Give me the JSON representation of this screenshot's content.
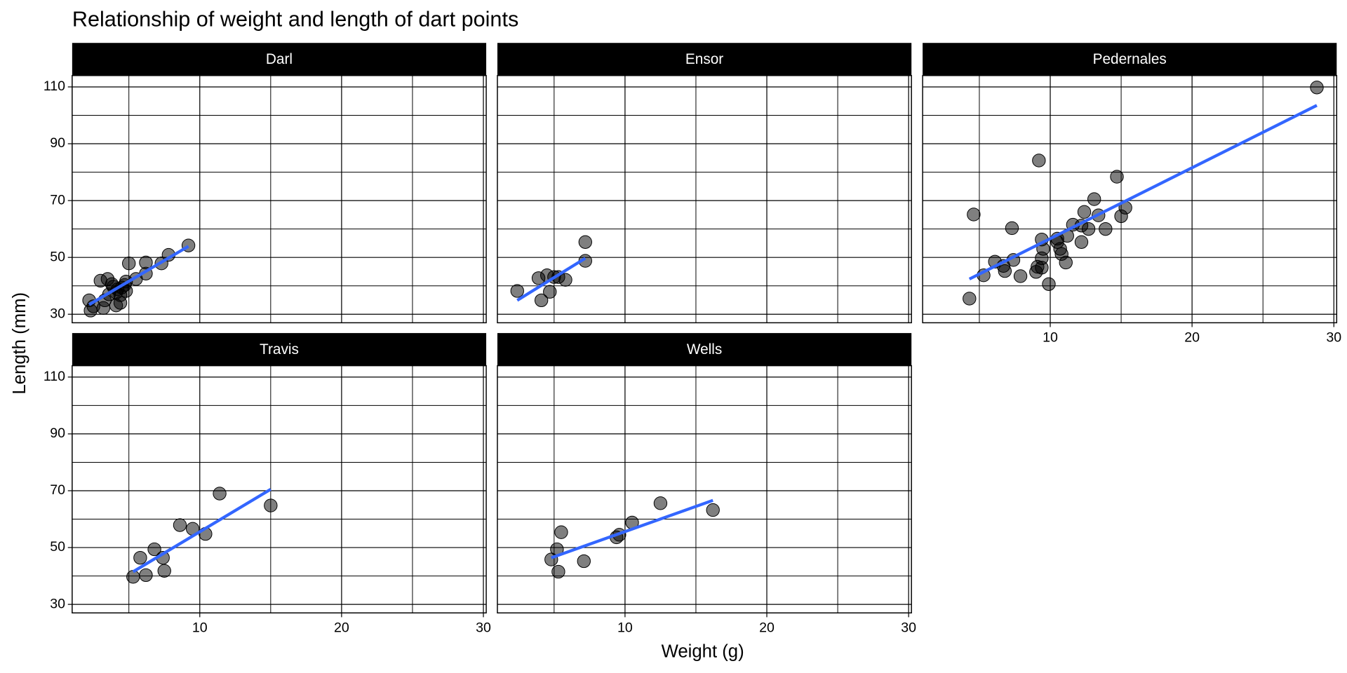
{
  "chart_data": {
    "type": "scatter",
    "title": "Relationship of weight and length of dart points",
    "x_label": "Weight (g)",
    "y_label": "Length (mm)",
    "xlim": [
      1,
      30.2
    ],
    "xticks": [
      10,
      20,
      30
    ],
    "x_minor_ticks": [
      5,
      15,
      25
    ],
    "ylim": [
      27,
      114
    ],
    "yticks": [
      30,
      50,
      70,
      90,
      110
    ],
    "y_minor_ticks": [
      40,
      60,
      80,
      100
    ],
    "grid": true,
    "point_color": "#000000",
    "point_opacity": 0.5,
    "trend_color": "#3366ff",
    "facets": [
      {
        "name": "Darl",
        "x": [
          2.2,
          2.3,
          2.5,
          3.0,
          3.2,
          3.3,
          3.5,
          3.6,
          3.8,
          3.9,
          4.1,
          4.2,
          4.4,
          4.5,
          4.7,
          4.8,
          4.1,
          4.4,
          4.8,
          5.0,
          5.5,
          6.2,
          6.2,
          7.3,
          7.8,
          9.2
        ],
        "y": [
          34.9,
          31.3,
          32.8,
          41.8,
          32.2,
          34.9,
          42.4,
          37.0,
          40.6,
          39.7,
          37.6,
          38.8,
          36.7,
          39.4,
          40.3,
          41.5,
          33.1,
          34.0,
          38.2,
          47.9,
          42.4,
          48.2,
          44.3,
          47.9,
          50.9,
          54.2
        ],
        "trend": {
          "x": [
            2.2,
            9.2
          ],
          "y": [
            33.4,
            53.9
          ]
        }
      },
      {
        "name": "Ensor",
        "x": [
          2.4,
          3.9,
          4.1,
          4.5,
          4.7,
          5.0,
          5.3,
          5.8,
          7.2,
          7.2
        ],
        "y": [
          38.2,
          42.7,
          34.9,
          43.7,
          37.9,
          43.1,
          43.1,
          42.1,
          55.4,
          48.8
        ],
        "trend": {
          "x": [
            2.4,
            7.2
          ],
          "y": [
            34.9,
            49.7
          ]
        }
      },
      {
        "name": "Pedernales",
        "x": [
          4.3,
          4.6,
          5.3,
          6.1,
          6.7,
          6.8,
          7.3,
          7.4,
          7.9,
          9.0,
          9.1,
          9.2,
          9.4,
          9.4,
          9.5,
          10.5,
          10.7,
          10.8,
          11.1,
          11.2,
          11.6,
          12.2,
          12.2,
          12.4,
          12.7,
          13.1,
          13.4,
          13.9,
          14.7,
          15.0,
          15.3,
          28.8,
          9.9,
          9.4,
          10.5
        ],
        "y": [
          35.5,
          65.1,
          43.7,
          48.5,
          47.0,
          45.2,
          60.3,
          49.1,
          43.4,
          44.9,
          46.7,
          84.1,
          56.3,
          49.7,
          53.0,
          55.4,
          53.0,
          51.2,
          48.2,
          57.6,
          61.5,
          55.4,
          61.2,
          66.0,
          60.0,
          70.5,
          64.8,
          60.0,
          78.4,
          64.5,
          67.5,
          109.8,
          40.6,
          46.4,
          56.6
        ],
        "trend": {
          "x": [
            4.3,
            28.8
          ],
          "y": [
            42.4,
            103.5
          ]
        }
      },
      {
        "name": "Travis",
        "x": [
          5.3,
          5.8,
          6.2,
          6.8,
          7.4,
          7.5,
          8.6,
          9.5,
          10.4,
          11.4,
          15.0
        ],
        "y": [
          39.7,
          46.4,
          40.3,
          49.4,
          46.4,
          41.8,
          57.9,
          56.6,
          54.8,
          69.0,
          64.8
        ],
        "trend": {
          "x": [
            5.3,
            15.0
          ],
          "y": [
            41.5,
            70.5
          ]
        }
      },
      {
        "name": "Wells",
        "x": [
          4.8,
          5.2,
          5.3,
          5.5,
          7.1,
          9.4,
          9.6,
          10.5,
          12.5,
          16.2
        ],
        "y": [
          45.8,
          49.4,
          41.5,
          55.4,
          45.2,
          53.6,
          54.5,
          58.8,
          65.6,
          63.2
        ],
        "trend": {
          "x": [
            4.8,
            16.2
          ],
          "y": [
            46.4,
            66.6
          ]
        }
      }
    ]
  }
}
